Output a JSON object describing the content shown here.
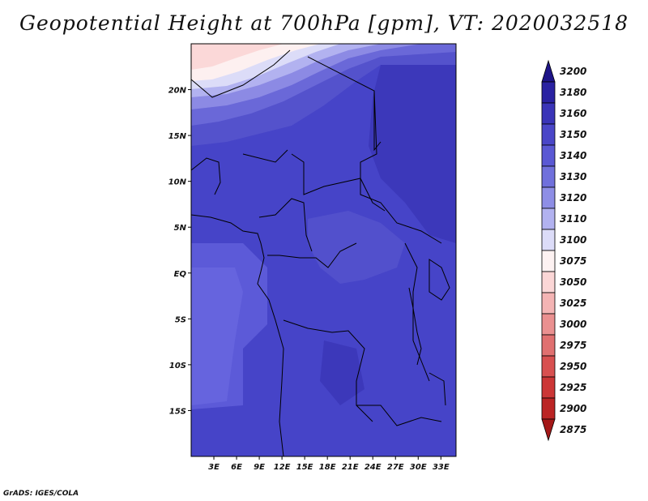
{
  "title": "Geopotential Height at 700hPa [gpm], VT: 2020032518",
  "credit": "GrADS: IGES/COLA",
  "map": {
    "lon_range": [
      0,
      35
    ],
    "lat_range": [
      -20,
      25
    ],
    "lon_ticks": [
      {
        "value": 3,
        "label": "3E"
      },
      {
        "value": 6,
        "label": "6E"
      },
      {
        "value": 9,
        "label": "9E"
      },
      {
        "value": 12,
        "label": "12E"
      },
      {
        "value": 15,
        "label": "15E"
      },
      {
        "value": 18,
        "label": "18E"
      },
      {
        "value": 21,
        "label": "21E"
      },
      {
        "value": 24,
        "label": "24E"
      },
      {
        "value": 27,
        "label": "27E"
      },
      {
        "value": 30,
        "label": "30E"
      },
      {
        "value": 33,
        "label": "33E"
      }
    ],
    "lat_ticks": [
      {
        "value": 20,
        "label": "20N"
      },
      {
        "value": 15,
        "label": "15N"
      },
      {
        "value": 10,
        "label": "10N"
      },
      {
        "value": 5,
        "label": "5N"
      },
      {
        "value": 0,
        "label": "EQ"
      },
      {
        "value": -5,
        "label": "5S"
      },
      {
        "value": -10,
        "label": "10S"
      },
      {
        "value": -15,
        "label": "15S"
      }
    ]
  },
  "legend": {
    "levels": [
      {
        "label": "3200",
        "color": "#1e1488"
      },
      {
        "label": "3180",
        "color": "#2a22a2"
      },
      {
        "label": "3160",
        "color": "#3a34b8"
      },
      {
        "label": "3150",
        "color": "#4a46c8"
      },
      {
        "label": "3140",
        "color": "#5a58d4"
      },
      {
        "label": "3130",
        "color": "#7070dc"
      },
      {
        "label": "3120",
        "color": "#8e8ee6"
      },
      {
        "label": "3110",
        "color": "#b2b2f0"
      },
      {
        "label": "3100",
        "color": "#dcdcf8"
      },
      {
        "label": "3075",
        "color": "#fdf2f2"
      },
      {
        "label": "3050",
        "color": "#fbd6d6"
      },
      {
        "label": "3025",
        "color": "#f4b4b4"
      },
      {
        "label": "3000",
        "color": "#ea9090"
      },
      {
        "label": "2975",
        "color": "#e07070"
      },
      {
        "label": "2950",
        "color": "#d85050"
      },
      {
        "label": "2925",
        "color": "#cc3636"
      },
      {
        "label": "2900",
        "color": "#bb2424"
      },
      {
        "label": "2875",
        "color": "#a41818"
      }
    ]
  }
}
